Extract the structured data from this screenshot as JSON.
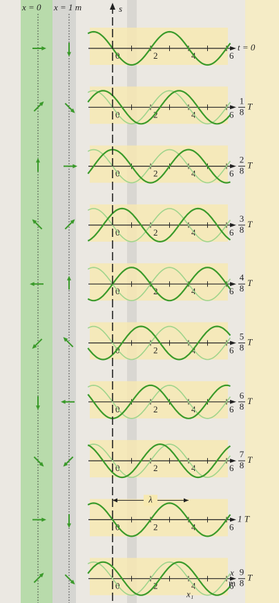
{
  "header": {
    "x_zero": "x = 0",
    "x_one": "x = 1 m",
    "s_label": "s"
  },
  "tick_labels": [
    "0",
    "2",
    "4",
    "6"
  ],
  "rows": [
    {
      "label": "t = 0"
    },
    {
      "numerator": "1",
      "denominator": "8",
      "unit": "T"
    },
    {
      "numerator": "2",
      "denominator": "8",
      "unit": "T"
    },
    {
      "numerator": "3",
      "denominator": "8",
      "unit": "T"
    },
    {
      "numerator": "4",
      "denominator": "8",
      "unit": "T"
    },
    {
      "numerator": "5",
      "denominator": "8",
      "unit": "T"
    },
    {
      "numerator": "6",
      "denominator": "8",
      "unit": "T"
    },
    {
      "numerator": "7",
      "denominator": "8",
      "unit": "T"
    },
    {
      "label": "1 T"
    },
    {
      "numerator": "9",
      "denominator": "8",
      "unit": "T"
    }
  ],
  "wavelength_label": "λ",
  "x_unit": {
    "numerator": "x",
    "denominator": "m"
  },
  "x1_label": "x₁"
}
